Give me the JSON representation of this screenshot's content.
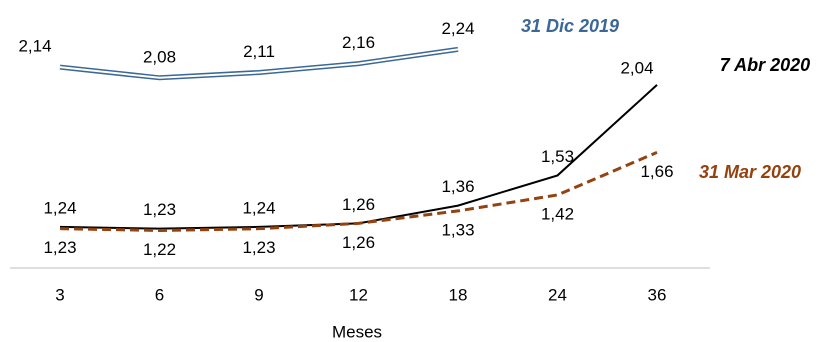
{
  "chart_data": {
    "type": "line",
    "x_label": "Meses",
    "categories": [
      "3",
      "6",
      "9",
      "12",
      "18",
      "24",
      "36"
    ],
    "series": [
      {
        "name": "31 Dic 2019",
        "color": "#3b6896",
        "values": [
          2.14,
          2.08,
          2.11,
          2.16,
          2.24,
          null,
          null
        ],
        "value_labels": [
          "2,14",
          "2,08",
          "2,11",
          "2,16",
          "2,24",
          null,
          null
        ]
      },
      {
        "name": "7 Abr 2020",
        "color": "#000000",
        "values": [
          1.24,
          1.23,
          1.24,
          1.26,
          1.36,
          1.53,
          2.04
        ],
        "value_labels": [
          "1,24",
          "1,23",
          "1,24",
          "1,26",
          "1,36",
          "1,53",
          "2,04"
        ]
      },
      {
        "name": "31 Mar 2020",
        "color": "#94420f",
        "values": [
          1.23,
          1.22,
          1.23,
          1.26,
          1.33,
          1.42,
          1.66
        ],
        "value_labels": [
          "1,23",
          "1,22",
          "1,23",
          "1,26",
          "1,33",
          "1,42",
          "1,66"
        ]
      }
    ]
  }
}
